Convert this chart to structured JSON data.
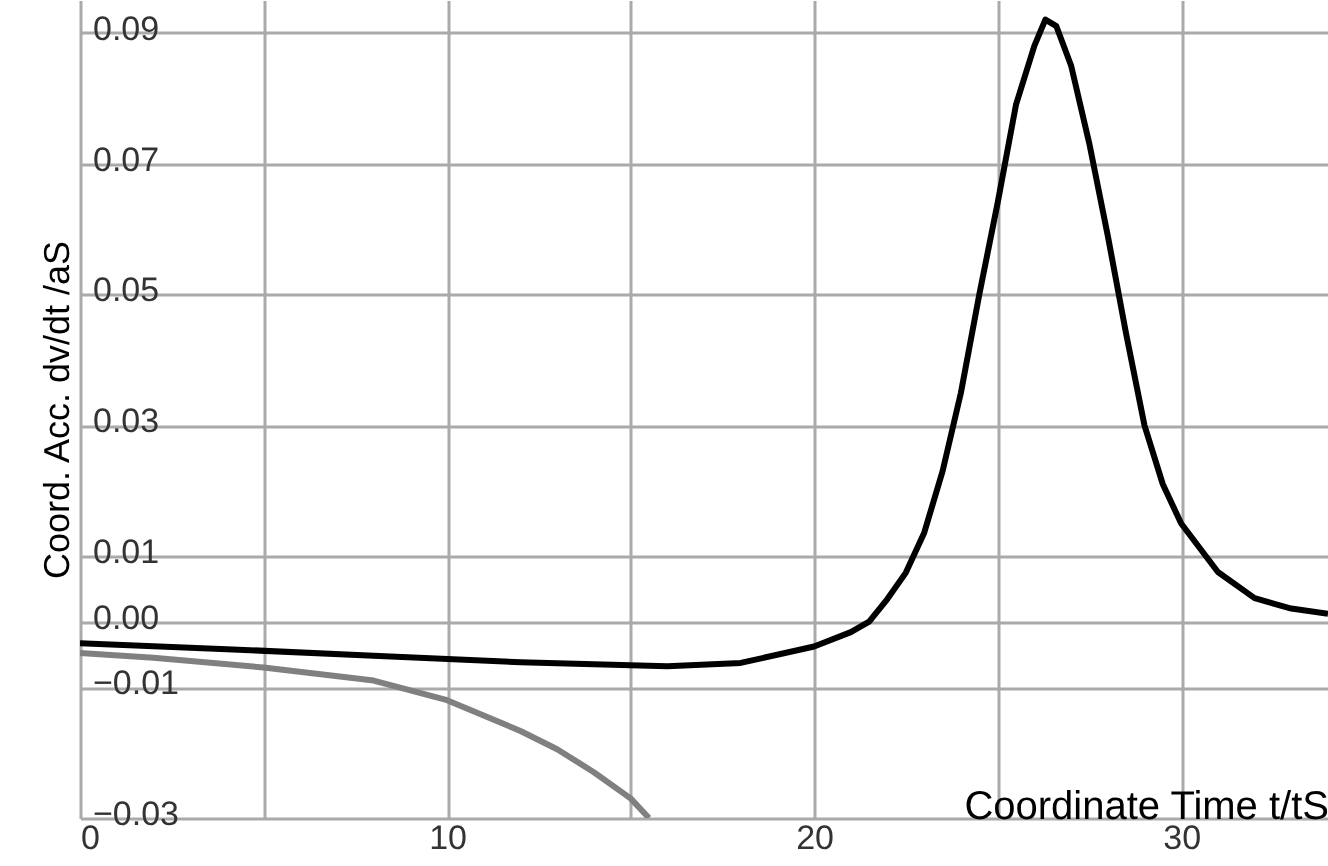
{
  "chart_data": {
    "type": "line",
    "xlabel": "Coordinate Time t/tS",
    "ylabel": "Coord. Acc. dv/dt /aS",
    "xlim": [
      0,
      34
    ],
    "ylim": [
      -0.03,
      0.095
    ],
    "xticks": [
      0,
      {
        "value": 5,
        "label": null
      },
      10,
      {
        "value": 15,
        "label": null
      },
      20,
      {
        "value": 25,
        "label": null
      },
      30
    ],
    "yticks": [
      0.09,
      0.07,
      0.05,
      0.03,
      0.01,
      {
        "value": 0,
        "label": "0.00"
      },
      -0.01,
      -0.03
    ],
    "grid": true,
    "line_style": "solid",
    "marker": "none",
    "series": [
      {
        "color": "#000000",
        "x": [
          0,
          4,
          8,
          12,
          16,
          18,
          20,
          21,
          21.5,
          22,
          22.5,
          23,
          23.5,
          24,
          24.5,
          25,
          25.5,
          26,
          26.3,
          26.6,
          27,
          27.5,
          28,
          28.5,
          29,
          29.5,
          30,
          31,
          32,
          33,
          34
        ],
        "values": [
          -0.0033,
          -0.0042,
          -0.0052,
          -0.0062,
          -0.0068,
          -0.0063,
          -0.0038,
          -0.0016,
          0.0,
          0.0035,
          0.0075,
          0.0136,
          0.023,
          0.035,
          0.05,
          0.064,
          0.079,
          0.088,
          0.092,
          0.091,
          0.085,
          0.073,
          0.059,
          0.044,
          0.03,
          0.021,
          0.015,
          0.0076,
          0.0036,
          0.002,
          0.0012
        ]
      },
      {
        "color": "#808080",
        "x": [
          0,
          2,
          5,
          8,
          10,
          12,
          13,
          14,
          15,
          15.5
        ],
        "values": [
          -0.0048,
          -0.0055,
          -0.007,
          -0.009,
          -0.012,
          -0.0167,
          -0.0195,
          -0.023,
          -0.027,
          -0.03
        ]
      }
    ]
  }
}
